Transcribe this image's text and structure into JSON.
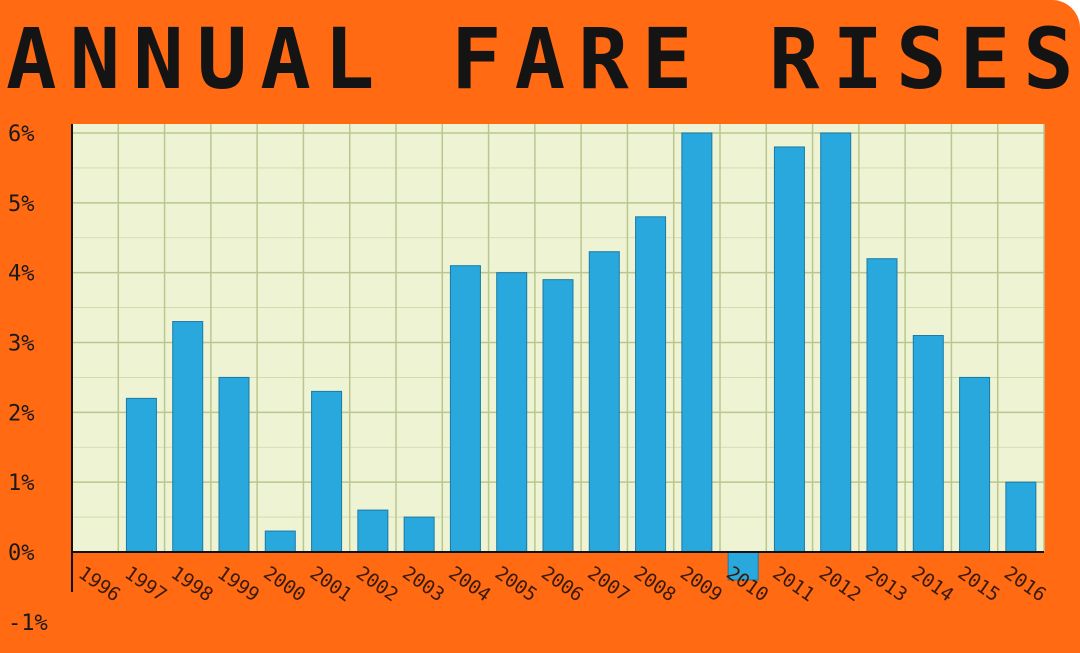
{
  "chart_data": {
    "type": "bar",
    "title": "ANNUAL FARE RISES",
    "xlabel": "",
    "ylabel": "",
    "categories": [
      "1996",
      "1997",
      "1998",
      "1999",
      "2000",
      "2001",
      "2002",
      "2003",
      "2004",
      "2005",
      "2006",
      "2007",
      "2008",
      "2009",
      "2010",
      "2011",
      "2012",
      "2013",
      "2014",
      "2015",
      "2016"
    ],
    "values": [
      0,
      2.2,
      3.3,
      2.5,
      0.3,
      2.3,
      0.6,
      0.5,
      4.1,
      4.0,
      3.9,
      4.3,
      4.8,
      6.0,
      -0.4,
      5.8,
      6.0,
      4.2,
      3.1,
      2.5,
      1.0
    ],
    "ylim": [
      -1,
      6
    ],
    "yticks": [
      "-1%",
      "0%",
      "1%",
      "2%",
      "3%",
      "4%",
      "5%",
      "6%"
    ],
    "grid": true,
    "colors": {
      "bar": "#29a8de",
      "bar_edge": "#1a7aa6",
      "frame": "#ff6a13",
      "plot_bg": "#eef3d4",
      "grid": "#b9c78e",
      "axis": "#111111",
      "tick_label": "#1a1a1a",
      "year_label": "#3a1a0a"
    }
  }
}
